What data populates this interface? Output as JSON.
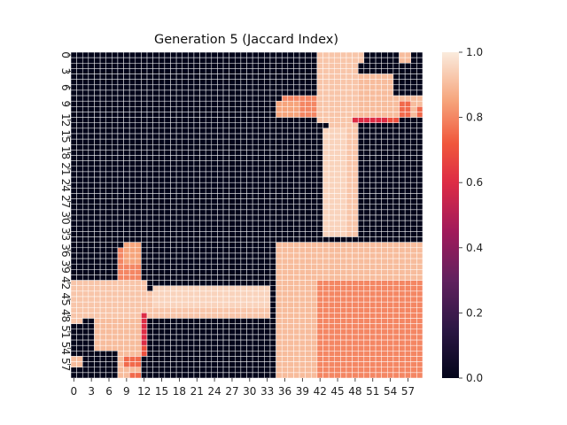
{
  "chart_data": {
    "type": "heatmap",
    "title": "Generation 5 (Jaccard Index)",
    "size": 60,
    "x_tick_labels": [
      "0",
      "3",
      "6",
      "9",
      "12",
      "15",
      "18",
      "21",
      "24",
      "27",
      "30",
      "33",
      "36",
      "39",
      "42",
      "45",
      "48",
      "51",
      "54",
      "57"
    ],
    "y_tick_labels": [
      "0",
      "3",
      "6",
      "9",
      "12",
      "15",
      "18",
      "21",
      "24",
      "27",
      "30",
      "33",
      "36",
      "39",
      "42",
      "45",
      "48",
      "51",
      "54",
      "57"
    ],
    "value_range": [
      0.0,
      1.0
    ],
    "colorbar_ticks": [
      "0.0",
      "0.2",
      "0.4",
      "0.6",
      "0.8",
      "1.0"
    ],
    "colormap": "rocket",
    "grid_line_color": "#ffffff",
    "default_value": 0.0,
    "blocks": [
      {
        "rows": [
          42,
          59
        ],
        "cols": [
          42,
          59
        ],
        "value": 0.8
      },
      {
        "rows": [
          8,
          11
        ],
        "cols": [
          42,
          59
        ],
        "value": 0.9
      },
      {
        "rows": [
          35,
          41
        ],
        "cols": [
          35,
          59
        ],
        "value": 0.9
      },
      {
        "rows": [
          4,
          7
        ],
        "cols": [
          48,
          54
        ],
        "value": 0.9
      },
      {
        "rows": [
          12,
          33
        ],
        "cols": [
          44,
          48
        ],
        "value": 0.92
      },
      {
        "rows": [
          0,
          1
        ],
        "cols": [
          43,
          49
        ],
        "value": 0.92
      },
      {
        "rows": [
          8,
          11
        ],
        "cols": [
          36,
          41
        ],
        "value": 0.8
      },
      {
        "rows": [
          12,
          12
        ],
        "cols": [
          49,
          55
        ],
        "value": 0.7
      },
      {
        "rows": [
          42,
          48
        ],
        "cols": [
          0,
          12
        ],
        "value": 0.92
      },
      {
        "rows": [
          43,
          46
        ],
        "cols": [
          14,
          33
        ],
        "value": 0.95
      },
      {
        "rows": [
          35,
          38
        ],
        "cols": [
          9,
          11
        ],
        "value": 0.85
      },
      {
        "rows": [
          56,
          57
        ],
        "cols": [
          9,
          11
        ],
        "value": 0.75
      },
      {
        "rows": [
          48,
          53
        ],
        "cols": [
          12,
          12
        ],
        "value": 0.6
      },
      {
        "rows": [
          0,
          1
        ],
        "cols": [
          56,
          57
        ],
        "value": 0.9
      },
      {
        "rows": [
          10,
          11
        ],
        "cols": [
          59,
          59
        ],
        "value": 0.75
      }
    ]
  }
}
